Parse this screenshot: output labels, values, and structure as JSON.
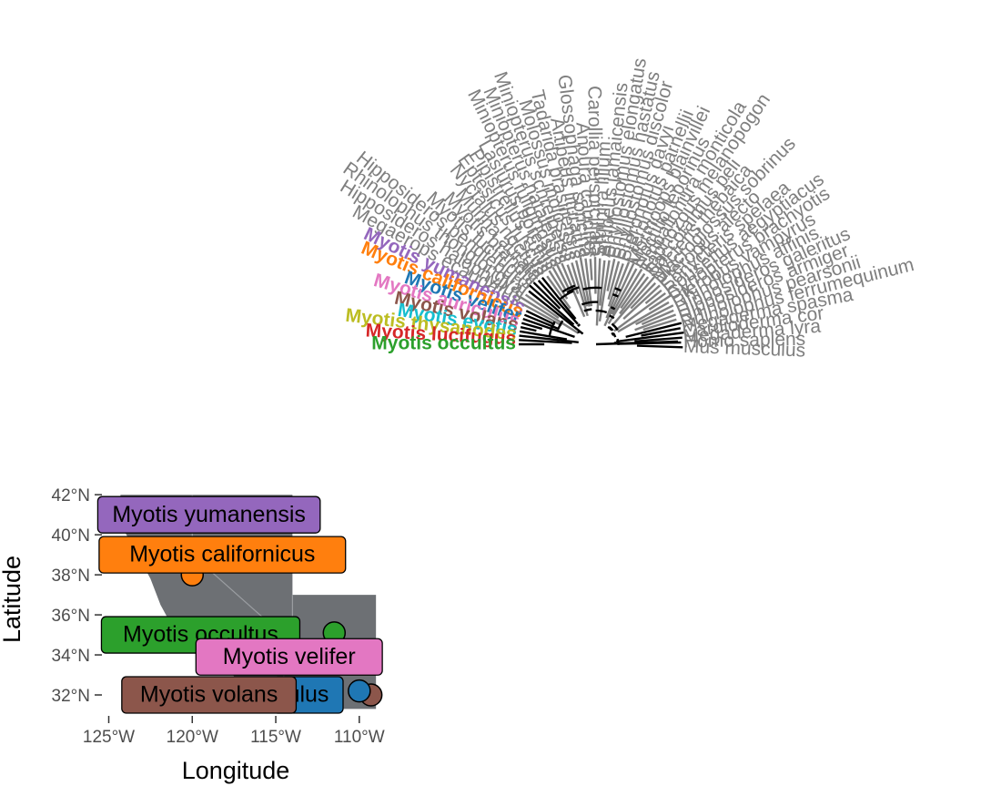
{
  "colors": {
    "tree_branch": "#000000",
    "tree_branch_grey": "#7f7f7f",
    "tip_grey": "#7f7f7f",
    "map_land": "#6d7074",
    "map_border": "#9a9da1",
    "palette": [
      "#9467bd",
      "#ff7f0e",
      "#1f77b4",
      "#e377c2",
      "#8c564b",
      "#17becf",
      "#bcbd22",
      "#d62728",
      "#2ca02c"
    ]
  },
  "tree": {
    "grey_tips": [
      "Mus musculus",
      "Homo sapiens",
      "Megaderma lyra",
      "Cardioderma cor",
      "Megaderma spasma",
      "Rhinolophus ferrumequinum",
      "Rhinolophus pearsonii",
      "Hipposideros armiger",
      "Hipposideros galeritus",
      "Rhinolophus affinis",
      "Pteropus vampyrus",
      "Cynopterus brachyotis",
      "Rousettus aegyptiacus",
      "Eonycteris spelaea",
      "Pteropus alecto",
      "Macroglossus sobrinus",
      "Nycteris thebaica",
      "Saccolaimus peli",
      "Taphozous melanopogon",
      "Emballonura monticola",
      "Noctilio leporinus",
      "Mormoops blainvillei",
      "Pteronotus parnellii",
      "Pteronotus davyi",
      "Phyllostomus discolor",
      "Phyllostomus hastatus",
      "Phyllostomus elongatus",
      "Artibeus jamaicensis",
      "Sturnira lilium",
      "Carollia perspicillata",
      "Anoura caudifer",
      "Glossophaga soricina",
      "Artibeus lituratus",
      "Tadarida brasiliensis",
      "Molossus molossus",
      "Miniopterus schreibersii",
      "Miniopterus natalensis",
      "Miniopterus fuliginosus",
      "Lasiurus borealis",
      "Pipistrellus kuhlii",
      "Eptesicus fuscus",
      "Nyctalus noctula",
      "Murina aurata",
      "Myotis brandtii",
      "Myotis lucifugus"
    ],
    "extra_tips": [
      "Hipposideros pendleburyi",
      "Rhinolophus thonglongyai",
      "Hipposideros halophyllus",
      "Megaerops ecaudatus"
    ],
    "highlighted_tips": [
      "Myotis yumanensis",
      "Myotis californicus",
      "Myotis velifer",
      "Myotis auriculus",
      "Myotis volans",
      "Myotis evotis",
      "Myotis thysanodes",
      "Myotis lucifugus",
      "Myotis occultus"
    ]
  },
  "map": {
    "xlabel": "Longitude",
    "ylabel": "Latitude",
    "x_ticks": [
      "125°W",
      "120°W",
      "115°W",
      "110°W"
    ],
    "x_tick_values": [
      -125,
      -120,
      -115,
      -110
    ],
    "y_ticks": [
      "32°N",
      "34°N",
      "36°N",
      "38°N",
      "40°N",
      "42°N"
    ],
    "y_tick_values": [
      32,
      34,
      36,
      38,
      40,
      42
    ],
    "xlim": [
      -125.3,
      -108.9
    ],
    "ylim": [
      31.0,
      42.6
    ],
    "points": [
      {
        "lon": -121.3,
        "lat": 40.9,
        "color": "#9467bd"
      },
      {
        "lon": -120.0,
        "lat": 38.0,
        "color": "#ff7f0e"
      },
      {
        "lon": -111.5,
        "lat": 35.1,
        "color": "#2ca02c"
      },
      {
        "lon": -109.3,
        "lat": 32.0,
        "color": "#8c564b"
      },
      {
        "lon": -110.0,
        "lat": 32.2,
        "color": "#1f77b4"
      }
    ],
    "labels": [
      {
        "text": "Myotis yumanensis",
        "lon": -119.0,
        "lat": 41.0,
        "color": "#9467bd"
      },
      {
        "text": "Myotis californicus",
        "lon": -118.2,
        "lat": 39.0,
        "color": "#ff7f0e"
      },
      {
        "text": "Myotis occultus",
        "lon": -119.5,
        "lat": 35.0,
        "color": "#2ca02c"
      },
      {
        "text": "Myotis velifer",
        "lon": -114.2,
        "lat": 33.9,
        "color": "#e377c2"
      },
      {
        "text": "Myotis auriculus",
        "lon": -114.6,
        "lat": 32.0,
        "color": "#1f77b4",
        "visible": "ulus"
      },
      {
        "text": "Myotis volans",
        "lon": -119.0,
        "lat": 32.0,
        "color": "#8c564b"
      }
    ]
  }
}
